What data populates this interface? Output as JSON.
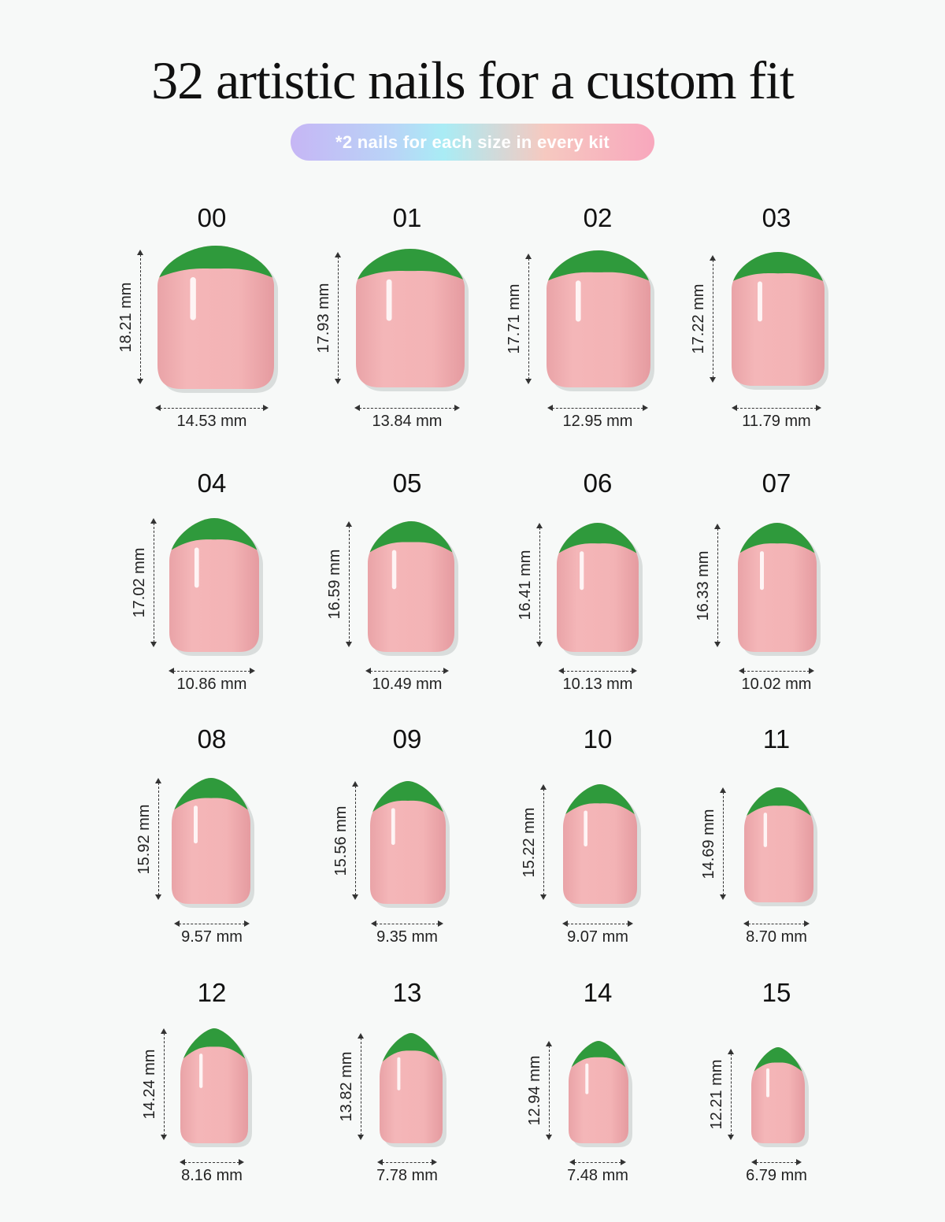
{
  "title": "32 artistic nails for a custom fit",
  "subtitle": "*2 nails for each size in every kit",
  "colors": {
    "tip": "#2f9a3c",
    "nail": "#f1aeb0",
    "nail_edge": "#e79b9f",
    "background": "#f7f9f8",
    "pill_gradient": [
      "#c6b6f5",
      "#a9ecf5",
      "#f6c9c0",
      "#f8a7bd"
    ]
  },
  "nails": [
    {
      "size": "00",
      "length": "18.21 mm",
      "width": "14.53 mm"
    },
    {
      "size": "01",
      "length": "17.93 mm",
      "width": "13.84 mm"
    },
    {
      "size": "02",
      "length": "17.71 mm",
      "width": "12.95 mm"
    },
    {
      "size": "03",
      "length": "17.22 mm",
      "width": "11.79 mm"
    },
    {
      "size": "04",
      "length": "17.02 mm",
      "width": "10.86 mm"
    },
    {
      "size": "05",
      "length": "16.59 mm",
      "width": "10.49 mm"
    },
    {
      "size": "06",
      "length": "16.41 mm",
      "width": "10.13 mm"
    },
    {
      "size": "07",
      "length": "16.33 mm",
      "width": "10.02 mm"
    },
    {
      "size": "08",
      "length": "15.92 mm",
      "width": "9.57 mm"
    },
    {
      "size": "09",
      "length": "15.56 mm",
      "width": "9.35 mm"
    },
    {
      "size": "10",
      "length": "15.22 mm",
      "width": "9.07 mm"
    },
    {
      "size": "11",
      "length": "14.69 mm",
      "width": "8.70 mm"
    },
    {
      "size": "12",
      "length": "14.24 mm",
      "width": "8.16 mm"
    },
    {
      "size": "13",
      "length": "13.82 mm",
      "width": "7.78 mm"
    },
    {
      "size": "14",
      "length": "12.94 mm",
      "width": "7.48 mm"
    },
    {
      "size": "15",
      "length": "12.21 mm",
      "width": "6.79 mm"
    }
  ]
}
